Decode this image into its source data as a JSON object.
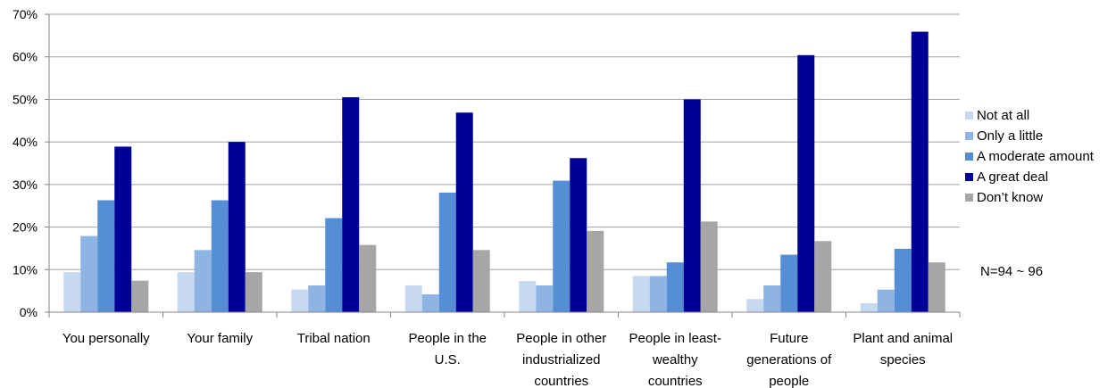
{
  "chart_data": {
    "type": "bar",
    "categories": [
      [
        "You personally"
      ],
      [
        "Your family"
      ],
      [
        "Tribal nation"
      ],
      [
        "People in the",
        "U.S."
      ],
      [
        "People in other",
        "industrialized",
        "countries"
      ],
      [
        "People in least-",
        "wealthy",
        "countries"
      ],
      [
        "Future",
        "generations of",
        "people"
      ],
      [
        "Plant and animal",
        "species"
      ]
    ],
    "series": [
      {
        "name": "Not at all",
        "color": "#c6d9f1",
        "values": [
          9.4,
          9.4,
          5.3,
          6.3,
          7.3,
          8.5,
          3.1,
          2.1
        ]
      },
      {
        "name": "Only a little",
        "color": "#8db4e3",
        "values": [
          17.9,
          14.6,
          6.3,
          4.2,
          6.3,
          8.5,
          6.3,
          5.3
        ]
      },
      {
        "name": "A moderate amount",
        "color": "#558ed5",
        "values": [
          26.3,
          26.3,
          22.1,
          28.1,
          30.9,
          11.7,
          13.5,
          14.9
        ]
      },
      {
        "name": "A great deal",
        "color": "#000099",
        "values": [
          38.9,
          40.0,
          50.5,
          46.9,
          36.2,
          50.0,
          60.4,
          65.9
        ]
      },
      {
        "name": "Don’t know",
        "color": "#a6a6a6",
        "values": [
          7.4,
          9.4,
          15.8,
          14.6,
          19.1,
          21.3,
          16.7,
          11.7
        ]
      }
    ],
    "y_ticks": [
      "0%",
      "10%",
      "20%",
      "30%",
      "40%",
      "50%",
      "60%",
      "70%"
    ],
    "ylim": [
      0,
      70
    ],
    "grid": true,
    "legend": "right",
    "title": "",
    "xlabel": "",
    "ylabel": "",
    "annotation": "N=94 ~ 96"
  }
}
